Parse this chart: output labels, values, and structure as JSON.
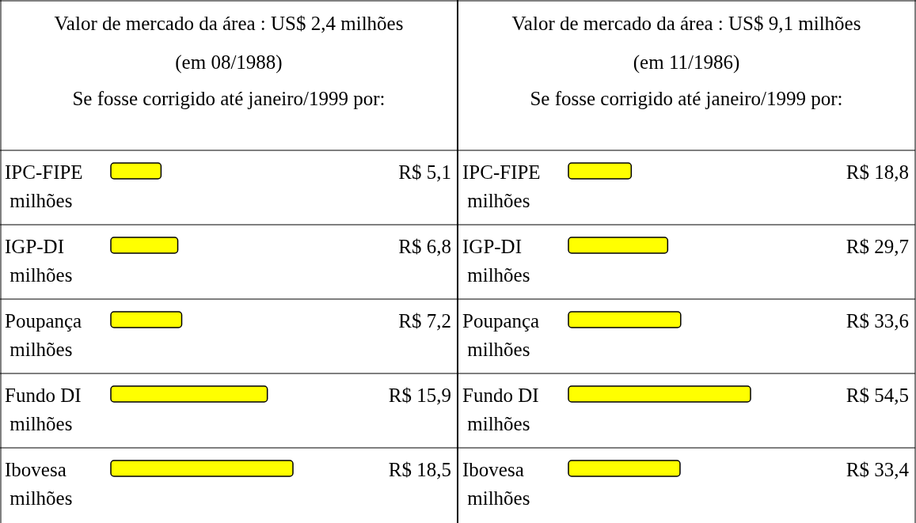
{
  "chart_data": [
    {
      "type": "bar",
      "orientation": "horizontal",
      "title": "Valor de mercado da área : US$ 2,4 milhões",
      "subtitle": "(em 08/1988)",
      "annotations": [
        "Se fosse corrigido até janeiro/1999 por:"
      ],
      "categories": [
        "IPC-FIPE milhões",
        "IGP-DI milhões",
        "Poupança milhões",
        "Fundo DI milhões",
        "Ibovesa milhões"
      ],
      "values": [
        5.1,
        6.8,
        7.2,
        15.9,
        18.5
      ],
      "value_labels": [
        "R$ 5,1",
        "R$ 6,8",
        "R$ 7,2",
        "R$ 15,9",
        "R$ 18,5"
      ],
      "color": "#ffff00"
    },
    {
      "type": "bar",
      "orientation": "horizontal",
      "title": "Valor de mercado da área : US$ 9,1 milhões",
      "subtitle": "(em 11/1986)",
      "annotations": [
        "Se fosse corrigido até janeiro/1999 por:"
      ],
      "categories": [
        "IPC-FIPE milhões",
        "IGP-DI milhões",
        "Poupança milhões",
        "Fundo DI milhões",
        "Ibovesa milhões"
      ],
      "values": [
        18.8,
        29.7,
        33.6,
        54.5,
        33.4
      ],
      "value_labels": [
        "R$ 18,8",
        "R$ 29,7",
        "R$ 33,6",
        "R$ 54,5",
        "R$ 33,4"
      ],
      "color": "#ffff00"
    }
  ]
}
